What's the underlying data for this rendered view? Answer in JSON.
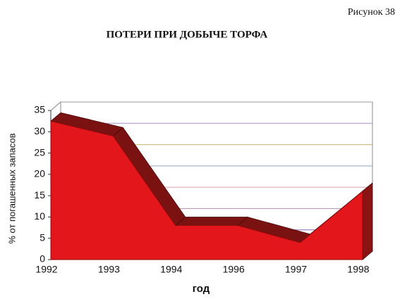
{
  "figure_label": "Рисунок 38",
  "chart_data": {
    "type": "area",
    "title": "ПОТЕРИ ПРИ ДОБЫЧЕ ТОРФА",
    "x_label": "год",
    "y_label": "% от погашенных запасов",
    "categories": [
      "1992",
      "1993",
      "1994",
      "1996",
      "1997",
      "1998"
    ],
    "values": [
      32.5,
      29,
      8,
      8,
      4,
      16
    ],
    "color": "#e3161c",
    "ylim": [
      0,
      35
    ],
    "yticks": [
      0,
      5,
      10,
      15,
      20,
      25,
      30,
      35
    ],
    "grid": true
  }
}
